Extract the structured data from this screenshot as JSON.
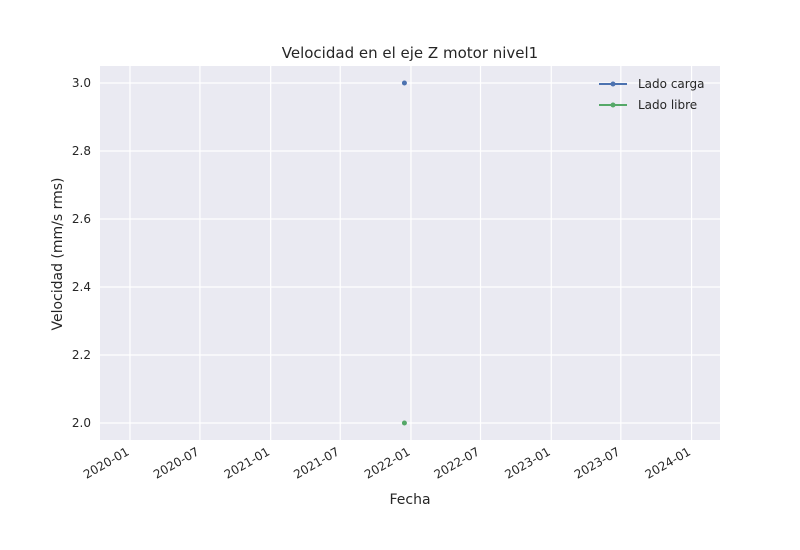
{
  "chart_data": {
    "type": "line",
    "title": "Velocidad en el eje Z motor nivel1",
    "xlabel": "Fecha",
    "ylabel": "Velocidad (mm/s rms)",
    "x_axis_type": "date",
    "xlim": [
      "2019-10-15",
      "2024-03-15"
    ],
    "ylim": [
      1.95,
      3.05
    ],
    "x_ticks": [
      "2020-01",
      "2020-07",
      "2021-01",
      "2021-07",
      "2022-01",
      "2022-07",
      "2023-01",
      "2023-07",
      "2024-01"
    ],
    "y_ticks": [
      "2.0",
      "2.2",
      "2.4",
      "2.6",
      "2.8",
      "3.0"
    ],
    "grid": true,
    "legend_position": "top-right",
    "background_color": "#eaeaf2",
    "series": [
      {
        "name": "Lado carga",
        "color": "#4c72b0",
        "points": [
          {
            "x": "2021-12-15",
            "y": 3.0
          }
        ]
      },
      {
        "name": "Lado libre",
        "color": "#55a868",
        "points": [
          {
            "x": "2021-12-15",
            "y": 2.0
          }
        ]
      }
    ]
  }
}
